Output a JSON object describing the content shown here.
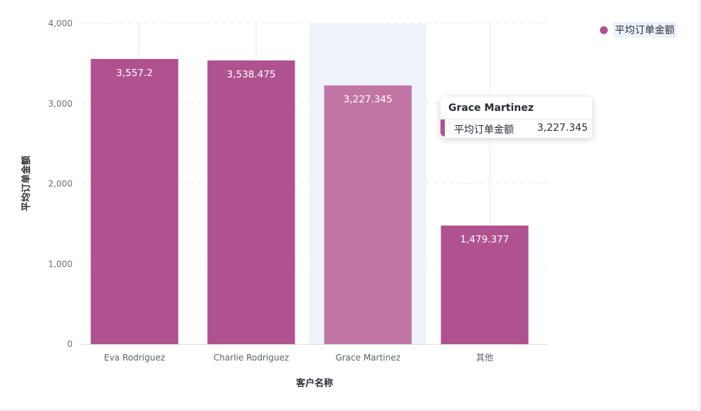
{
  "chart_data": {
    "type": "bar",
    "categories": [
      "Eva Rodriguez",
      "Charlie Rodriguez",
      "Grace Martinez",
      "其他"
    ],
    "series": [
      {
        "name": "平均订单金额",
        "values": [
          3557.2,
          3538.475,
          3227.345,
          1479.377
        ],
        "value_labels": [
          "3,557.2",
          "3,538.475",
          "3,227.345",
          "1,479.377"
        ]
      }
    ],
    "xlabel": "客户名称",
    "ylabel": "平均订单金额",
    "ylim": [
      0,
      4000
    ],
    "yticks": [
      0,
      1000,
      2000,
      3000,
      4000
    ],
    "ytick_labels": [
      "0",
      "1,000",
      "2,000",
      "3,000",
      "4,000"
    ],
    "grid": true,
    "legend_position": "top-right",
    "highlighted_category": "Grace Martinez"
  },
  "colors": {
    "bar": "#b0528f",
    "bar_highlight": "#c175a5",
    "highlight_band": "#eef3fc",
    "grid": "#e6e8ee"
  },
  "tooltip": {
    "title": "Grace Martinez",
    "series_name": "平均订单金额",
    "value": "3,227.345"
  }
}
